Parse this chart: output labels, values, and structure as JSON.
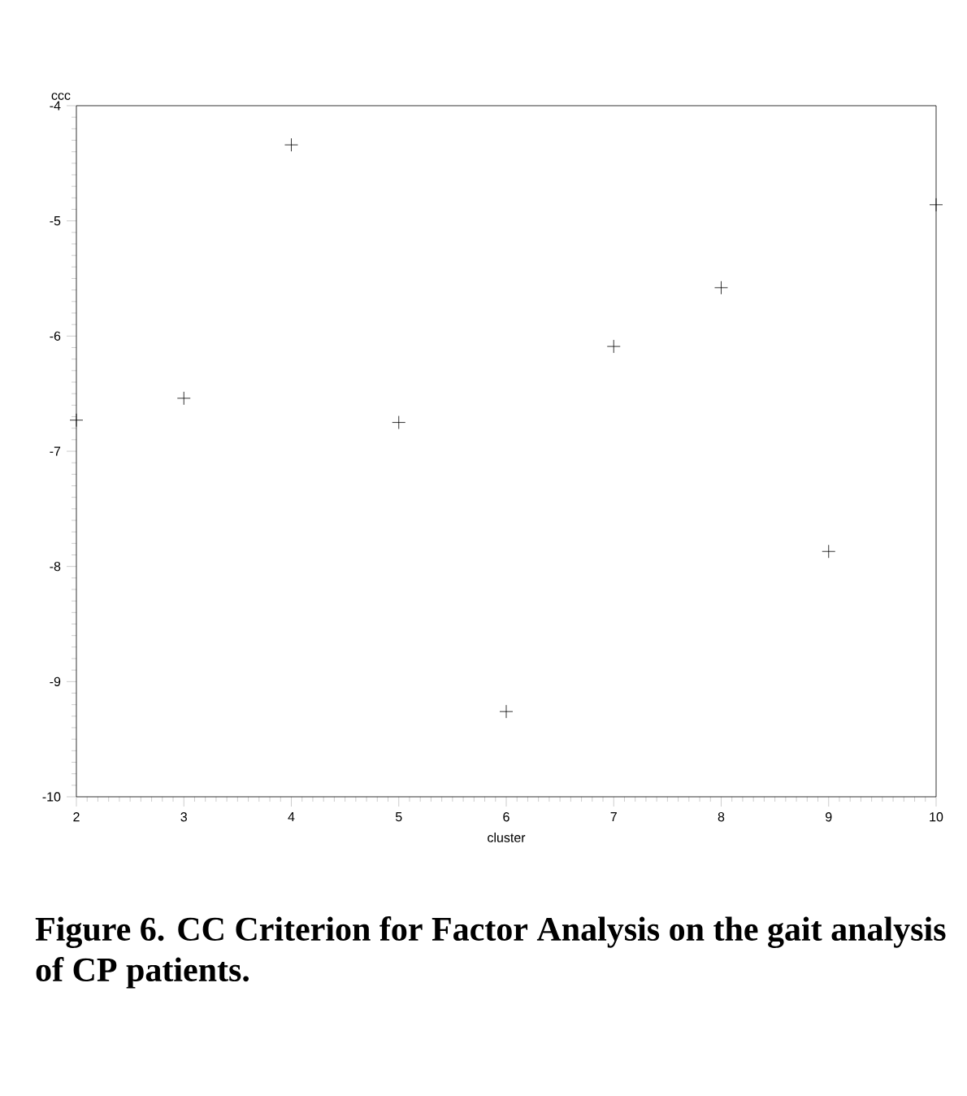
{
  "chart_data": {
    "type": "scatter",
    "title": "Figure 6. CC Criterion for Factor Analysis on the gait analysis of CP patients.",
    "xlabel": "cluster",
    "ylabel": "ccc",
    "x": [
      2,
      3,
      4,
      5,
      6,
      7,
      8,
      9,
      10
    ],
    "values": [
      -6.73,
      -6.54,
      -4.34,
      -6.75,
      -9.26,
      -6.09,
      -5.58,
      -7.87,
      -4.86
    ],
    "color": "#000000",
    "marker": "cross",
    "xlim": [
      2,
      10
    ],
    "xticks": [
      2,
      3,
      4,
      5,
      6,
      7,
      8,
      9,
      10
    ],
    "ylim": [
      -10,
      -4
    ],
    "yticks": [
      -10,
      -9,
      -8,
      -7,
      -6,
      -5,
      -4
    ],
    "grid": false
  }
}
